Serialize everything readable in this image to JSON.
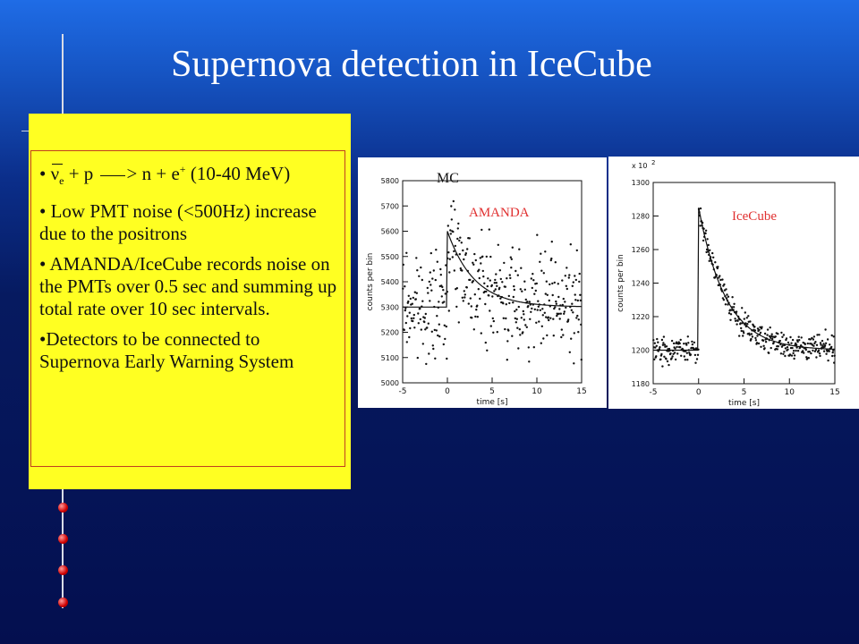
{
  "slide": {
    "title": "Supernova detection in IceCube",
    "bullets": [
      {
        "before": "ν",
        "sub": "e",
        "mid": " + p ",
        "arrow": ">",
        "after": " n + e",
        "sup": "+",
        "tail": " (10-40 MeV)"
      },
      {
        "text": "Low PMT noise (<500Hz) increase due to the positrons"
      },
      {
        "text": "AMANDA/IceCube  records noise on the  PMTs over 0.5 sec and summing up total rate over 10 sec intervals."
      },
      {
        "text": "Detectors to be connected to Supernova Early Warning System"
      }
    ]
  },
  "chart_data": [
    {
      "type": "scatter",
      "label_mc": "MC",
      "label_detector": "AMANDA",
      "xlabel": "time [s]",
      "ylabel": "counts per bin",
      "xlim": [
        -5,
        15
      ],
      "ylim": [
        5000,
        5800
      ],
      "xticks": [
        -5,
        0,
        5,
        10,
        15
      ],
      "yticks": [
        5000,
        5100,
        5200,
        5300,
        5400,
        5500,
        5600,
        5700,
        5800
      ],
      "model": {
        "baseline": 5300,
        "peak": 5600,
        "rise_t": 0,
        "decay_tau": 3
      },
      "scatter_sigma": 100,
      "n_points": 400
    },
    {
      "type": "scatter",
      "multiplier_label": "x 10",
      "multiplier_exp": "2",
      "label_detector": "IceCube",
      "xlabel": "time [s]",
      "ylabel": "counts per bin",
      "xlim": [
        -5,
        15
      ],
      "ylim": [
        1180,
        1300
      ],
      "xticks": [
        -5,
        0,
        5,
        10,
        15
      ],
      "yticks": [
        1180,
        1200,
        1220,
        1240,
        1260,
        1280,
        1300
      ],
      "model": {
        "baseline": 1200,
        "peak": 1285,
        "rise_t": 0,
        "decay_tau": 3
      },
      "scatter_sigma": 4,
      "n_points": 400
    }
  ]
}
